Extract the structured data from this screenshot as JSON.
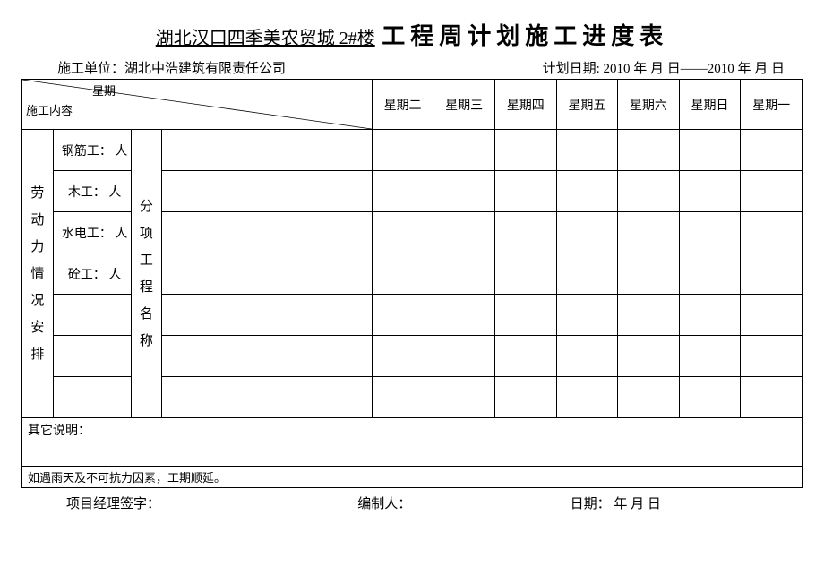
{
  "header": {
    "project_name": "湖北汉口四季美农贸城 2#楼",
    "main_title": "工程周计划施工进度表"
  },
  "meta": {
    "contractor_label": "施工单位：",
    "contractor_value": "湖北中浩建筑有限责任公司",
    "plan_date_label": "计划日期:",
    "plan_date_value": " 2010 年   月     日——2010 年     月     日"
  },
  "diag": {
    "top_label": "星期",
    "bottom_label": "施工内容"
  },
  "days": [
    "星期二",
    "星期三",
    "星期四",
    "星期五",
    "星期六",
    "星期日",
    "星期一"
  ],
  "side_labor_label": "劳动力情况安排",
  "subproject_label": "分项工程名称",
  "labor_rows": [
    "钢筋工：   人",
    "木工：    人",
    "水电工：   人",
    "砼工：   人",
    "",
    "",
    ""
  ],
  "notes_label": "其它说明：",
  "rain_note": "如遇雨天及不可抗力因素，工期顺延。",
  "footer": {
    "pm_sign": "项目经理签字：",
    "compiler": "编制人：",
    "date": "日期：     年    月    日"
  },
  "layout": {
    "col_widths_pct": [
      4,
      10,
      4,
      27,
      7.9,
      7.9,
      7.9,
      7.9,
      7.9,
      7.9,
      7.9
    ]
  }
}
